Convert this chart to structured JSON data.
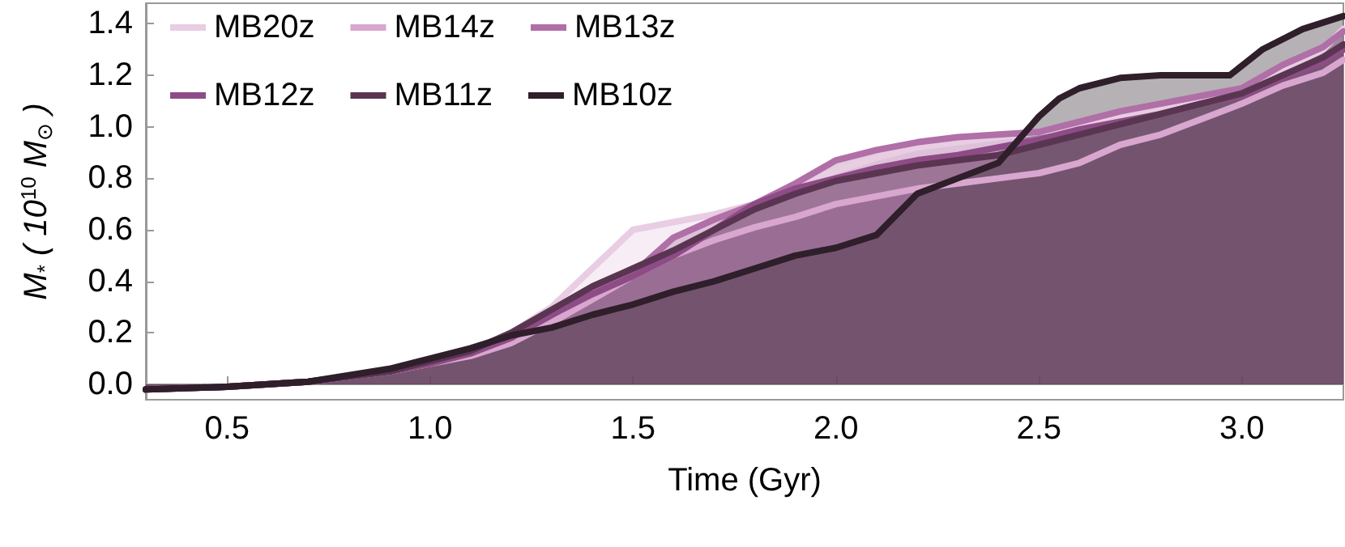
{
  "chart_data": {
    "type": "area",
    "xlabel": "Time (Gyr)",
    "ylabel": "M$_{*}$ ( 10$^{10}$ M$_{⊙}$ )",
    "x": [
      0.3,
      0.5,
      0.7,
      0.9,
      1.0,
      1.1,
      1.2,
      1.3,
      1.4,
      1.5,
      1.6,
      1.7,
      1.8,
      1.9,
      2.0,
      2.1,
      2.2,
      2.3,
      2.4,
      2.5,
      2.6,
      2.7,
      2.8,
      2.9,
      3.0,
      3.1,
      3.2,
      3.25
    ],
    "series": [
      {
        "name": "MB20z",
        "color": "#e8cde3",
        "values": [
          -0.02,
          -0.01,
          0.01,
          0.05,
          0.08,
          0.13,
          0.2,
          0.3,
          0.45,
          0.6,
          0.63,
          0.66,
          0.7,
          0.76,
          0.83,
          0.88,
          0.92,
          0.94,
          0.96,
          0.98,
          1.0,
          1.04,
          1.07,
          1.11,
          1.15,
          1.22,
          1.3,
          1.38
        ]
      },
      {
        "name": "MB14z",
        "color": "#d8a6cf",
        "values": [
          -0.02,
          -0.01,
          0.01,
          0.05,
          0.08,
          0.11,
          0.16,
          0.24,
          0.33,
          0.42,
          0.5,
          0.56,
          0.61,
          0.65,
          0.7,
          0.73,
          0.76,
          0.78,
          0.8,
          0.82,
          0.86,
          0.93,
          0.97,
          1.03,
          1.09,
          1.16,
          1.21,
          1.26
        ]
      },
      {
        "name": "MB13z",
        "color": "#b06fa7",
        "values": [
          -0.02,
          -0.01,
          0.01,
          0.05,
          0.08,
          0.12,
          0.19,
          0.28,
          0.36,
          0.43,
          0.57,
          0.64,
          0.7,
          0.78,
          0.87,
          0.91,
          0.94,
          0.96,
          0.97,
          0.98,
          1.02,
          1.06,
          1.09,
          1.12,
          1.15,
          1.24,
          1.31,
          1.37
        ]
      },
      {
        "name": "MB12z",
        "color": "#8e4c86",
        "values": [
          -0.02,
          -0.01,
          0.01,
          0.05,
          0.08,
          0.12,
          0.18,
          0.27,
          0.35,
          0.42,
          0.5,
          0.6,
          0.7,
          0.76,
          0.8,
          0.84,
          0.87,
          0.89,
          0.92,
          0.95,
          0.99,
          1.02,
          1.05,
          1.09,
          1.12,
          1.19,
          1.25,
          1.3
        ]
      },
      {
        "name": "MB11z",
        "color": "#5a3552",
        "values": [
          -0.02,
          -0.01,
          0.01,
          0.05,
          0.09,
          0.13,
          0.2,
          0.29,
          0.38,
          0.45,
          0.52,
          0.6,
          0.68,
          0.74,
          0.79,
          0.82,
          0.85,
          0.87,
          0.89,
          0.93,
          0.97,
          1.01,
          1.05,
          1.09,
          1.13,
          1.2,
          1.27,
          1.32
        ]
      },
      {
        "name": "MB10z",
        "color": "#2e1f2a",
        "x": [
          0.3,
          0.5,
          0.7,
          0.9,
          1.0,
          1.1,
          1.2,
          1.3,
          1.4,
          1.5,
          1.6,
          1.7,
          1.8,
          1.9,
          2.0,
          2.1,
          2.15,
          2.2,
          2.3,
          2.4,
          2.45,
          2.5,
          2.55,
          2.6,
          2.7,
          2.8,
          2.97,
          3.05,
          3.15,
          3.25
        ],
        "values": [
          -0.02,
          -0.01,
          0.01,
          0.06,
          0.1,
          0.14,
          0.19,
          0.22,
          0.27,
          0.31,
          0.36,
          0.4,
          0.45,
          0.5,
          0.53,
          0.58,
          0.66,
          0.74,
          0.8,
          0.86,
          0.95,
          1.04,
          1.11,
          1.15,
          1.19,
          1.2,
          1.2,
          1.3,
          1.38,
          1.43
        ]
      }
    ],
    "xlim": [
      0.3,
      3.25
    ],
    "ylim": [
      -0.06,
      1.48
    ],
    "xticks": [
      {
        "value": 0.5,
        "label": "0.5"
      },
      {
        "value": 1,
        "label": "1.0"
      },
      {
        "value": 1.5,
        "label": "1.5"
      },
      {
        "value": 2,
        "label": "2.0"
      },
      {
        "value": 2.5,
        "label": "2.5"
      },
      {
        "value": 3,
        "label": "3.0"
      }
    ],
    "yticks": [
      {
        "value": 0,
        "label": "0.0"
      },
      {
        "value": 0.2,
        "label": "0.2"
      },
      {
        "value": 0.4,
        "label": "0.4"
      },
      {
        "value": 0.6,
        "label": "0.6"
      },
      {
        "value": 0.8,
        "label": "0.8"
      },
      {
        "value": 1,
        "label": "1.0"
      },
      {
        "value": 1.2,
        "label": "1.2"
      },
      {
        "value": 1.4,
        "label": "1.4"
      }
    ],
    "legend": "top left",
    "marker": "none",
    "line_style": "solid"
  }
}
